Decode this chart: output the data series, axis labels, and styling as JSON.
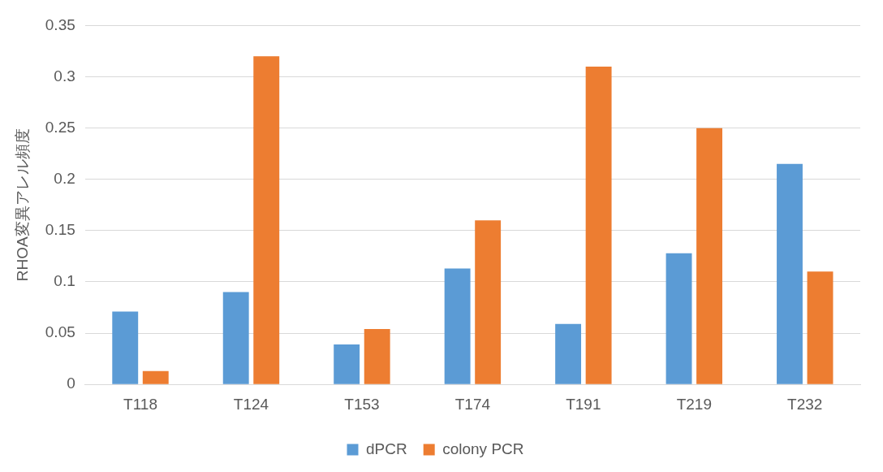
{
  "chart_data": {
    "type": "bar",
    "ylabel": "RHOA変異アレル頻度",
    "categories": [
      "T118",
      "T124",
      "T153",
      "T174",
      "T191",
      "T219",
      "T232"
    ],
    "series": [
      {
        "name": "dPCR",
        "color": "#5b9bd5",
        "values": [
          0.071,
          0.09,
          0.039,
          0.113,
          0.059,
          0.128,
          0.215
        ]
      },
      {
        "name": "colony PCR",
        "color": "#ed7d31",
        "values": [
          0.013,
          0.32,
          0.054,
          0.16,
          0.31,
          0.25,
          0.11
        ]
      }
    ],
    "ylim": [
      0,
      0.35
    ],
    "yticks": [
      0,
      0.05,
      0.1,
      0.15,
      0.2,
      0.25,
      0.3,
      0.35
    ],
    "grid": "y",
    "legend": "bottom"
  }
}
